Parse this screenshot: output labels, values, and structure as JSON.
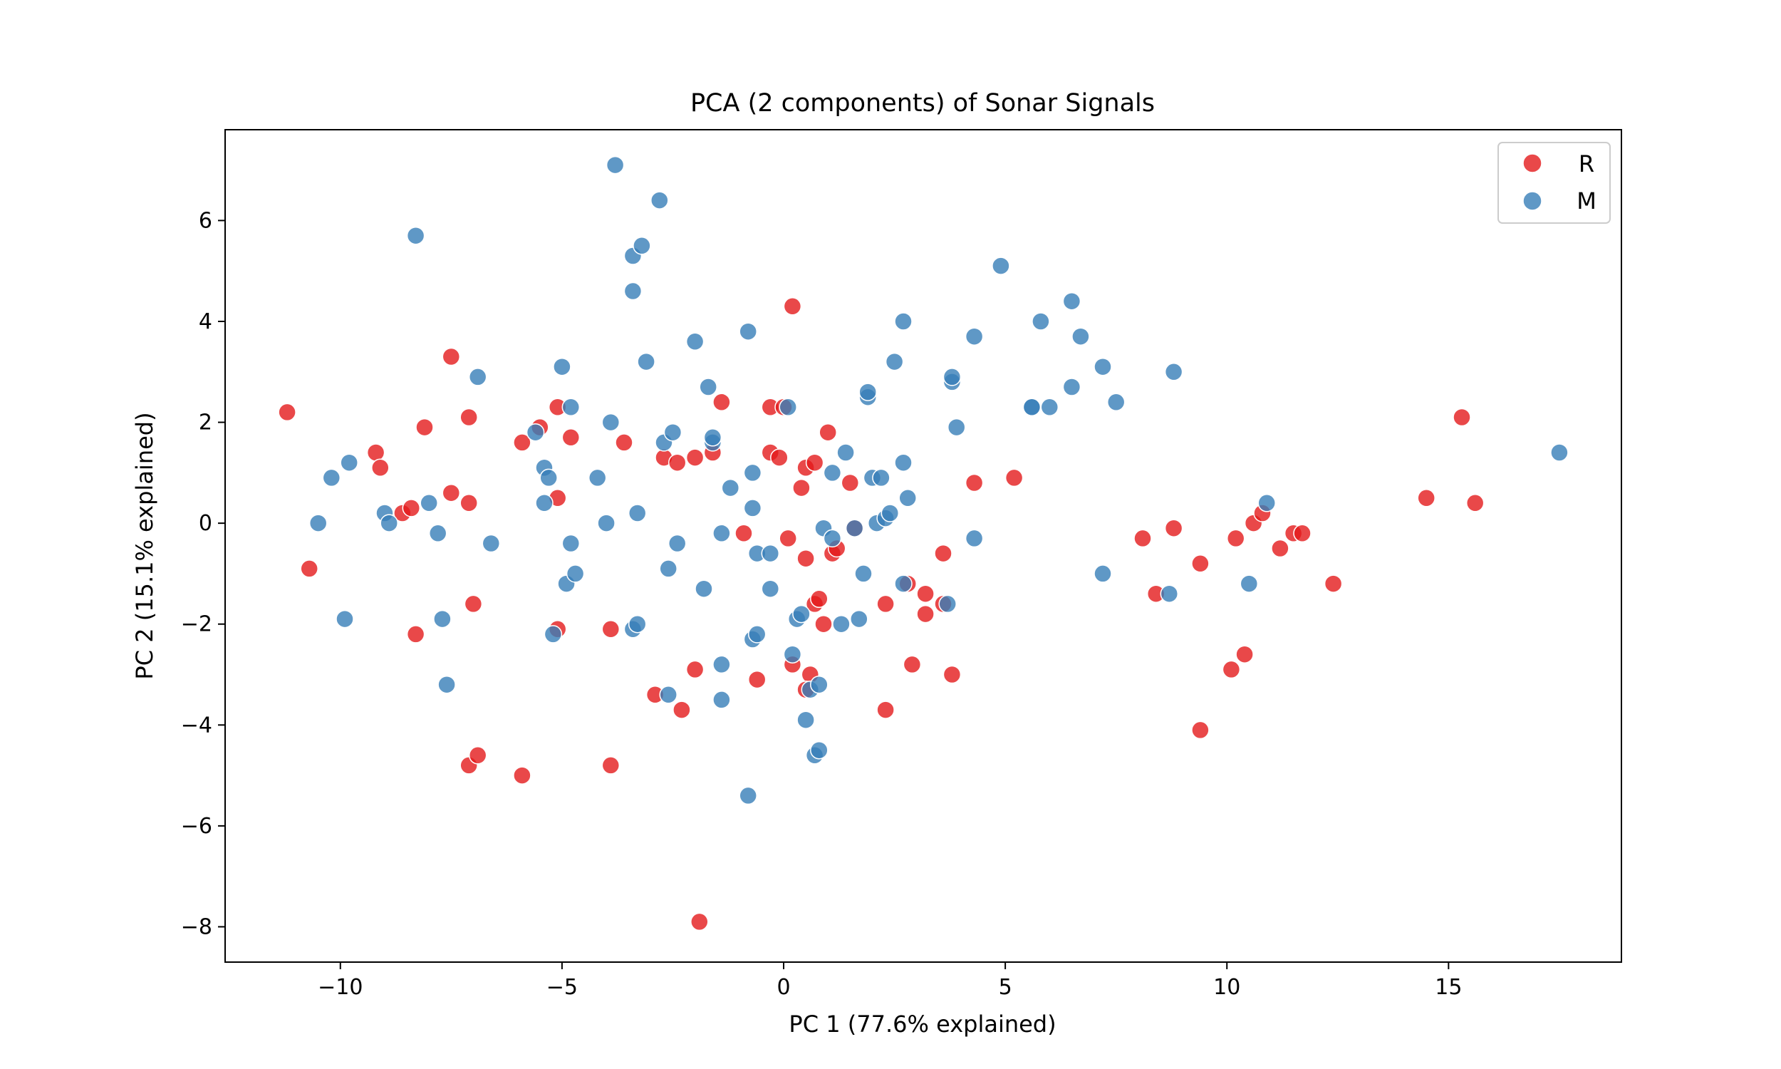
{
  "chart_data": {
    "type": "scatter",
    "title": "PCA (2 components) of Sonar Signals",
    "xlabel": "PC 1 (77.6% explained)",
    "ylabel": "PC 2 (15.1% explained)",
    "xlim": [
      -12.6,
      18.9
    ],
    "ylim": [
      -8.7,
      7.8
    ],
    "xticks": [
      -10,
      -5,
      0,
      5,
      10,
      15
    ],
    "yticks": [
      -8,
      -6,
      -4,
      -2,
      0,
      2,
      4,
      6
    ],
    "grid": false,
    "legend_position": "top-right",
    "series": [
      {
        "name": "R",
        "color": "#e41a1c",
        "points": [
          [
            -11.2,
            2.2
          ],
          [
            -10.7,
            -0.9
          ],
          [
            -9.2,
            1.4
          ],
          [
            -9.1,
            1.1
          ],
          [
            -8.6,
            0.2
          ],
          [
            -8.4,
            0.3
          ],
          [
            -8.3,
            -2.2
          ],
          [
            -8.1,
            1.9
          ],
          [
            -7.5,
            3.3
          ],
          [
            -7.5,
            0.6
          ],
          [
            -7.1,
            2.1
          ],
          [
            -7.1,
            0.4
          ],
          [
            -7.0,
            -1.6
          ],
          [
            -7.1,
            -4.8
          ],
          [
            -6.9,
            -4.6
          ],
          [
            -5.9,
            1.6
          ],
          [
            -5.9,
            -5.0
          ],
          [
            -5.5,
            1.9
          ],
          [
            -5.1,
            2.3
          ],
          [
            -5.1,
            0.5
          ],
          [
            -5.1,
            -2.1
          ],
          [
            -4.8,
            1.7
          ],
          [
            -3.9,
            -2.1
          ],
          [
            -3.9,
            -4.8
          ],
          [
            -3.6,
            1.6
          ],
          [
            -2.9,
            -3.4
          ],
          [
            -2.7,
            1.3
          ],
          [
            -2.4,
            1.2
          ],
          [
            -2.3,
            -3.7
          ],
          [
            -2.0,
            1.3
          ],
          [
            -1.6,
            1.4
          ],
          [
            -1.4,
            2.4
          ],
          [
            -2.0,
            -2.9
          ],
          [
            -1.9,
            -7.9
          ],
          [
            -0.9,
            -0.2
          ],
          [
            -0.6,
            -3.1
          ],
          [
            -0.3,
            1.4
          ],
          [
            -0.3,
            2.3
          ],
          [
            -0.1,
            1.3
          ],
          [
            0.1,
            -0.3
          ],
          [
            0.0,
            2.3
          ],
          [
            0.2,
            4.3
          ],
          [
            0.2,
            -2.8
          ],
          [
            0.4,
            0.7
          ],
          [
            0.5,
            1.1
          ],
          [
            0.5,
            -0.7
          ],
          [
            0.6,
            -3.0
          ],
          [
            0.7,
            1.2
          ],
          [
            0.7,
            -1.6
          ],
          [
            0.8,
            -1.5
          ],
          [
            0.5,
            -3.3
          ],
          [
            0.9,
            -2.0
          ],
          [
            1.0,
            1.8
          ],
          [
            1.1,
            -0.6
          ],
          [
            1.2,
            -0.5
          ],
          [
            1.5,
            0.8
          ],
          [
            1.6,
            -0.1
          ],
          [
            2.3,
            -1.6
          ],
          [
            2.3,
            -3.7
          ],
          [
            2.8,
            -1.2
          ],
          [
            2.9,
            -2.8
          ],
          [
            3.2,
            -1.4
          ],
          [
            3.2,
            -1.8
          ],
          [
            3.6,
            -0.6
          ],
          [
            3.6,
            -1.6
          ],
          [
            3.8,
            -3.0
          ],
          [
            4.3,
            0.8
          ],
          [
            5.2,
            0.9
          ],
          [
            8.1,
            -0.3
          ],
          [
            8.4,
            -1.4
          ],
          [
            8.8,
            -0.1
          ],
          [
            9.4,
            -0.8
          ],
          [
            9.4,
            -4.1
          ],
          [
            10.1,
            -2.9
          ],
          [
            10.2,
            -0.3
          ],
          [
            10.4,
            -2.6
          ],
          [
            10.6,
            0.0
          ],
          [
            10.8,
            0.2
          ],
          [
            11.2,
            -0.5
          ],
          [
            11.5,
            -0.2
          ],
          [
            11.7,
            -0.2
          ],
          [
            12.4,
            -1.2
          ],
          [
            14.5,
            0.5
          ],
          [
            15.3,
            2.1
          ],
          [
            15.6,
            0.4
          ]
        ]
      },
      {
        "name": "M",
        "color": "#377eb8",
        "points": [
          [
            -10.2,
            0.9
          ],
          [
            -10.5,
            0.0
          ],
          [
            -9.9,
            -1.9
          ],
          [
            -9.8,
            1.2
          ],
          [
            -9.0,
            0.2
          ],
          [
            -8.9,
            0.0
          ],
          [
            -8.3,
            5.7
          ],
          [
            -8.0,
            0.4
          ],
          [
            -7.8,
            -0.2
          ],
          [
            -7.7,
            -1.9
          ],
          [
            -7.6,
            -3.2
          ],
          [
            -6.9,
            2.9
          ],
          [
            -6.6,
            -0.4
          ],
          [
            -5.6,
            1.8
          ],
          [
            -5.4,
            1.1
          ],
          [
            -5.4,
            0.4
          ],
          [
            -5.3,
            0.9
          ],
          [
            -5.2,
            -2.2
          ],
          [
            -5.0,
            3.1
          ],
          [
            -4.9,
            -1.2
          ],
          [
            -4.8,
            2.3
          ],
          [
            -4.8,
            -0.4
          ],
          [
            -4.7,
            -1.0
          ],
          [
            -4.2,
            0.9
          ],
          [
            -4.0,
            0.0
          ],
          [
            -3.9,
            2.0
          ],
          [
            -3.8,
            7.1
          ],
          [
            -3.4,
            4.6
          ],
          [
            -3.4,
            5.3
          ],
          [
            -3.2,
            5.5
          ],
          [
            -3.1,
            3.2
          ],
          [
            -3.4,
            -2.1
          ],
          [
            -3.3,
            -2.0
          ],
          [
            -3.3,
            0.2
          ],
          [
            -2.8,
            6.4
          ],
          [
            -2.7,
            1.6
          ],
          [
            -2.5,
            1.8
          ],
          [
            -2.6,
            -0.9
          ],
          [
            -2.6,
            -3.4
          ],
          [
            -2.4,
            -0.4
          ],
          [
            -2.0,
            3.6
          ],
          [
            -1.8,
            -1.3
          ],
          [
            -1.7,
            2.7
          ],
          [
            -1.6,
            1.6
          ],
          [
            -1.6,
            1.7
          ],
          [
            -1.4,
            -0.2
          ],
          [
            -1.4,
            -2.8
          ],
          [
            -1.4,
            -3.5
          ],
          [
            -1.2,
            0.7
          ],
          [
            -0.8,
            3.8
          ],
          [
            -0.7,
            0.3
          ],
          [
            -0.7,
            1.0
          ],
          [
            -0.7,
            -2.3
          ],
          [
            -0.6,
            -2.2
          ],
          [
            -0.6,
            -0.6
          ],
          [
            -0.8,
            -5.4
          ],
          [
            -0.3,
            -1.3
          ],
          [
            -0.3,
            -0.6
          ],
          [
            0.1,
            2.3
          ],
          [
            0.2,
            -2.6
          ],
          [
            0.3,
            -1.9
          ],
          [
            0.4,
            -1.8
          ],
          [
            0.5,
            -3.9
          ],
          [
            0.6,
            -3.3
          ],
          [
            0.7,
            -4.6
          ],
          [
            0.8,
            -4.5
          ],
          [
            0.8,
            -3.2
          ],
          [
            0.9,
            -0.1
          ],
          [
            1.1,
            -0.3
          ],
          [
            1.1,
            1.0
          ],
          [
            1.3,
            -2.0
          ],
          [
            1.4,
            1.4
          ],
          [
            1.6,
            -0.1
          ],
          [
            1.7,
            -1.9
          ],
          [
            1.8,
            -1.0
          ],
          [
            1.9,
            2.5
          ],
          [
            1.9,
            2.6
          ],
          [
            2.0,
            0.9
          ],
          [
            2.1,
            0.0
          ],
          [
            2.2,
            0.9
          ],
          [
            2.3,
            0.1
          ],
          [
            2.4,
            0.2
          ],
          [
            2.5,
            3.2
          ],
          [
            2.7,
            4.0
          ],
          [
            2.7,
            1.2
          ],
          [
            2.7,
            -1.2
          ],
          [
            2.8,
            0.5
          ],
          [
            3.7,
            -1.6
          ],
          [
            3.8,
            2.8
          ],
          [
            3.8,
            2.9
          ],
          [
            3.9,
            1.9
          ],
          [
            4.3,
            3.7
          ],
          [
            4.3,
            -0.3
          ],
          [
            4.9,
            5.1
          ],
          [
            5.6,
            2.3
          ],
          [
            5.6,
            2.3
          ],
          [
            5.8,
            4.0
          ],
          [
            6.0,
            2.3
          ],
          [
            6.5,
            2.7
          ],
          [
            6.5,
            4.4
          ],
          [
            6.7,
            3.7
          ],
          [
            7.2,
            3.1
          ],
          [
            7.2,
            -1.0
          ],
          [
            7.5,
            2.4
          ],
          [
            8.7,
            -1.4
          ],
          [
            8.8,
            3.0
          ],
          [
            10.5,
            -1.2
          ],
          [
            10.9,
            0.4
          ],
          [
            17.5,
            1.4
          ]
        ]
      }
    ]
  }
}
